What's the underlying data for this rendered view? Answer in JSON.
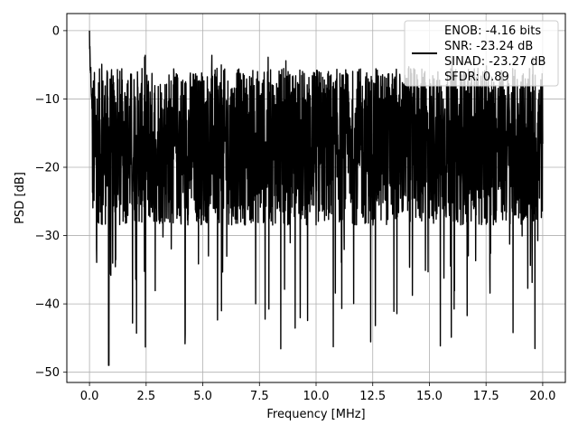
{
  "chart_data": {
    "type": "line",
    "xlabel": "Frequency [MHz]",
    "ylabel": "PSD [dB]",
    "xlim": [
      -1.0,
      21.0
    ],
    "ylim": [
      -51.5,
      2.5
    ],
    "x_ticks": [
      0.0,
      2.5,
      5.0,
      7.5,
      10.0,
      12.5,
      15.0,
      17.5,
      20.0
    ],
    "x_tick_labels": [
      "0.0",
      "2.5",
      "5.0",
      "7.5",
      "10.0",
      "12.5",
      "15.0",
      "17.5",
      "20.0"
    ],
    "y_ticks": [
      0,
      -10,
      -20,
      -30,
      -40,
      -50
    ],
    "y_tick_labels": [
      "0",
      "−10",
      "−20",
      "−30",
      "−40",
      "−50"
    ],
    "grid": true,
    "legend_position": "top-right",
    "legend_lines": [
      "ENOB: -4.16 bits",
      "SNR: -23.24 dB",
      "SINAD: -23.27 dB",
      "SFDR: 0.89"
    ],
    "line_color": "#000000",
    "grid_color": "#b0b0b0",
    "series": [
      {
        "x_start": 0.0,
        "x_end": 20.0,
        "peak_db": 0.0,
        "mean_db": -17,
        "upper_envelope_db": -7,
        "lower_envelope_db": -30,
        "min_db": -49
      }
    ]
  }
}
